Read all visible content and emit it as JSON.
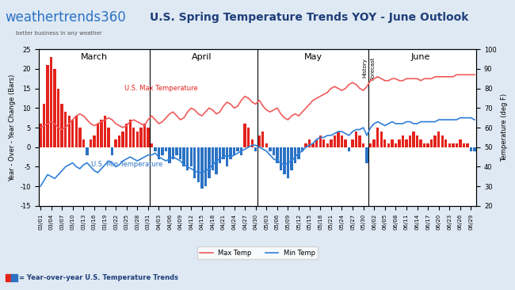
{
  "chart_data": {
    "type": "bar",
    "title": "U.S. Spring Temperature Trends YOY - June Outlook",
    "brand": "weathertrends360",
    "tagline": "better business in any weather",
    "footer": "= Year-over-year U.S. Temperature Trends",
    "ylabel": "Year - Over - Year Change (Bars)",
    "y2label": "Temperature (deg F)",
    "annotations": [
      "March",
      "April",
      "May",
      "June",
      "History",
      "Forecast",
      "U.S. Max Temperature",
      "U.S. Min Temperature"
    ],
    "categories": [
      "03/01",
      null,
      null,
      "03/04",
      null,
      null,
      "03/07",
      null,
      null,
      "03/10",
      null,
      null,
      "03/13",
      null,
      null,
      "03/16",
      null,
      null,
      "03/19",
      null,
      null,
      "03/22",
      null,
      null,
      "03/25",
      null,
      null,
      "03/28",
      null,
      null,
      "03/31",
      null,
      null,
      "04/03",
      null,
      null,
      "04/06",
      null,
      null,
      "04/09",
      null,
      null,
      "04/12",
      null,
      null,
      "04/15",
      null,
      null,
      "04/18",
      null,
      null,
      "04/21",
      null,
      null,
      "04/24",
      null,
      null,
      "04/27",
      null,
      null,
      "04/30",
      null,
      null,
      "05/03",
      null,
      null,
      "05/06",
      null,
      null,
      "05/09",
      null,
      null,
      "05/12",
      null,
      null,
      "05/15",
      null,
      null,
      "05/18",
      null,
      null,
      "05/21",
      null,
      null,
      "05/24",
      null,
      null,
      "05/27",
      null,
      null,
      "05/30",
      null,
      null,
      "06/02",
      null,
      null,
      "06/05",
      null,
      null,
      "06/08",
      null,
      null,
      "06/11",
      null,
      null,
      "06/14",
      null,
      null,
      "06/17",
      null,
      null,
      "06/20",
      null,
      null,
      "06/23",
      null,
      null,
      "06/26",
      null,
      null,
      "06/29",
      null
    ],
    "series": [
      {
        "type": "bar",
        "values": [
          6,
          11,
          21,
          23,
          20,
          15,
          11,
          9,
          8,
          7,
          8,
          5,
          2,
          -2,
          2,
          3,
          6,
          7,
          8,
          5,
          -2,
          2,
          3,
          4,
          6,
          7,
          5,
          4,
          5,
          6,
          5,
          1,
          -1,
          -3,
          -2,
          -1,
          -4,
          -3,
          -2,
          -3,
          -5,
          -6,
          -5,
          -8,
          -9,
          -10.5,
          -10,
          -8,
          -6,
          -7,
          -4,
          -3,
          -5,
          -3,
          -2,
          -1,
          -2,
          6,
          5,
          2,
          -1,
          3,
          4,
          1,
          -1,
          -2,
          -4,
          -6,
          -7,
          -8,
          -6,
          -4,
          -3,
          -1,
          1,
          2,
          1,
          2,
          3,
          2,
          1,
          2,
          3,
          4,
          3,
          2,
          -1,
          2,
          4,
          3,
          1,
          -4,
          1,
          2,
          5,
          4,
          2,
          1,
          2,
          1,
          2,
          3,
          2,
          3,
          4,
          3,
          2,
          1,
          1,
          2,
          3,
          4,
          3,
          2,
          1,
          1,
          1,
          2,
          1,
          1,
          -1,
          -1
        ],
        "colors": [
          "#e3231c",
          "#e3231c",
          "#e3231c",
          "#e3231c",
          "#e3231c",
          "#e3231c",
          "#e3231c",
          "#e3231c",
          "#e3231c",
          "#e3231c",
          "#e3231c",
          "#e3231c",
          "#e3231c",
          "#2b72c4",
          "#e3231c",
          "#e3231c",
          "#e3231c",
          "#e3231c",
          "#e3231c",
          "#e3231c",
          "#2b72c4",
          "#e3231c",
          "#e3231c",
          "#e3231c",
          "#e3231c",
          "#e3231c",
          "#e3231c",
          "#e3231c",
          "#e3231c",
          "#e3231c",
          "#e3231c",
          "#e3231c",
          "#2b72c4",
          "#2b72c4",
          "#2b72c4",
          "#2b72c4",
          "#2b72c4",
          "#2b72c4",
          "#2b72c4",
          "#2b72c4",
          "#2b72c4",
          "#2b72c4",
          "#2b72c4",
          "#2b72c4",
          "#2b72c4",
          "#2b72c4",
          "#2b72c4",
          "#2b72c4",
          "#2b72c4",
          "#2b72c4",
          "#2b72c4",
          "#2b72c4",
          "#2b72c4",
          "#2b72c4",
          "#2b72c4",
          "#2b72c4",
          "#2b72c4",
          "#e3231c",
          "#e3231c",
          "#e3231c",
          "#2b72c4",
          "#e3231c",
          "#e3231c",
          "#e3231c",
          "#2b72c4",
          "#2b72c4",
          "#2b72c4",
          "#2b72c4",
          "#2b72c4",
          "#2b72c4",
          "#2b72c4",
          "#2b72c4",
          "#2b72c4",
          "#2b72c4",
          "#e3231c",
          "#e3231c",
          "#e3231c",
          "#e3231c",
          "#e3231c",
          "#e3231c",
          "#e3231c",
          "#e3231c",
          "#e3231c",
          "#e3231c",
          "#e3231c",
          "#e3231c",
          "#2b72c4",
          "#e3231c",
          "#e3231c",
          "#e3231c",
          "#e3231c",
          "#2b72c4",
          "#e3231c",
          "#e3231c",
          "#e3231c",
          "#e3231c",
          "#e3231c",
          "#e3231c",
          "#e3231c",
          "#e3231c",
          "#e3231c",
          "#e3231c",
          "#e3231c",
          "#e3231c",
          "#e3231c",
          "#e3231c",
          "#e3231c",
          "#e3231c",
          "#e3231c",
          "#e3231c",
          "#e3231c",
          "#e3231c",
          "#e3231c",
          "#e3231c",
          "#e3231c",
          "#e3231c",
          "#e3231c",
          "#e3231c",
          "#e3231c",
          "#e3231c",
          "#2b72c4",
          "#2b72c4"
        ]
      },
      {
        "type": "line",
        "name": "Max Temp",
        "color": "#f05a5a",
        "axis": "y2",
        "values": [
          60,
          61,
          62,
          63,
          62,
          60,
          59,
          60,
          62,
          64,
          66,
          67,
          66,
          64,
          62,
          61,
          62,
          63,
          64,
          65,
          64,
          62,
          61,
          60,
          61,
          63,
          64,
          63,
          62,
          61,
          64,
          66,
          64,
          62,
          63,
          65,
          67,
          68,
          66,
          64,
          65,
          68,
          70,
          69,
          67,
          66,
          68,
          70,
          69,
          67,
          68,
          71,
          73,
          72,
          70,
          71,
          74,
          76,
          75,
          73,
          72,
          74,
          71,
          69,
          68,
          69,
          70,
          67,
          65,
          64,
          66,
          67,
          66,
          68,
          70,
          72,
          74,
          75,
          76,
          77,
          78,
          80,
          81,
          80,
          79,
          80,
          82,
          83,
          82,
          80,
          79,
          81,
          84,
          85,
          86,
          85,
          84,
          84,
          85,
          85,
          84,
          84,
          85,
          85,
          85,
          85,
          84,
          85,
          85,
          85,
          86,
          86,
          86,
          86,
          86,
          86,
          87,
          87,
          87,
          87,
          87,
          87
        ]
      },
      {
        "type": "line",
        "name": "Min Temp",
        "color": "#2f7fd8",
        "axis": "y2",
        "values": [
          30,
          33,
          36,
          35,
          34,
          36,
          38,
          40,
          41,
          42,
          40,
          39,
          41,
          42,
          40,
          38,
          37,
          39,
          41,
          43,
          42,
          40,
          41,
          43,
          44,
          45,
          44,
          43,
          44,
          45,
          46,
          46,
          47,
          45,
          44,
          43,
          44,
          45,
          44,
          43,
          41,
          40,
          39,
          38,
          37,
          37,
          38,
          39,
          41,
          43,
          44,
          45,
          46,
          45,
          46,
          47,
          48,
          49,
          50,
          51,
          51,
          50,
          49,
          48,
          46,
          44,
          43,
          42,
          41,
          42,
          43,
          45,
          47,
          48,
          50,
          51,
          52,
          54,
          55,
          55,
          56,
          56,
          57,
          58,
          58,
          57,
          56,
          58,
          59,
          59,
          60,
          56,
          60,
          62,
          63,
          62,
          61,
          62,
          63,
          62,
          62,
          62,
          63,
          63,
          62,
          62,
          63,
          63,
          63,
          63,
          63,
          64,
          64,
          64,
          64,
          64,
          64,
          65,
          65,
          65,
          65,
          64
        ]
      }
    ],
    "ylim": [
      -15,
      25
    ],
    "yticks": [
      -15,
      -10,
      -5,
      0,
      5,
      10,
      15,
      20,
      25
    ],
    "y2lim": [
      20,
      100
    ],
    "y2ticks": [
      20,
      30,
      40,
      50,
      60,
      70,
      80,
      90,
      100
    ],
    "grid": false,
    "legend": "lower center"
  }
}
